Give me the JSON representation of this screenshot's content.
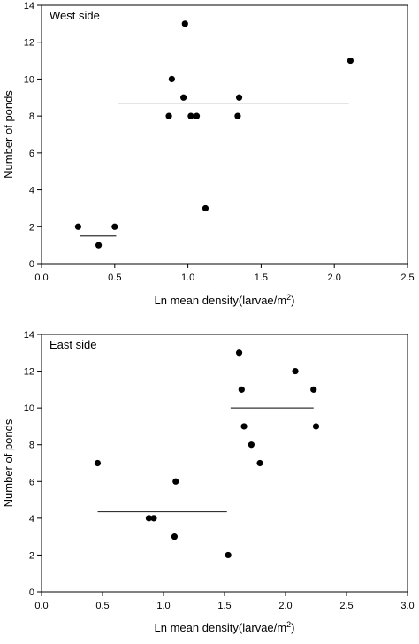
{
  "chart_data": [
    {
      "type": "scatter",
      "panel_label": "West side",
      "xlabel": "Ln mean density(larvae/m",
      "xlabel_sup": "2",
      "xlabel_close": ")",
      "ylabel": "Number of ponds",
      "xlim": [
        0.0,
        2.5
      ],
      "ylim": [
        0,
        14
      ],
      "xticks": [
        "0.0",
        "0.5",
        "1.0",
        "1.5",
        "2.0",
        "2.5"
      ],
      "yticks": [
        "0",
        "2",
        "4",
        "6",
        "8",
        "10",
        "12",
        "14"
      ],
      "grid": false,
      "points": [
        {
          "x": 0.25,
          "y": 2
        },
        {
          "x": 0.39,
          "y": 1
        },
        {
          "x": 0.5,
          "y": 2
        },
        {
          "x": 0.87,
          "y": 8
        },
        {
          "x": 0.89,
          "y": 10
        },
        {
          "x": 0.97,
          "y": 9
        },
        {
          "x": 0.98,
          "y": 13
        },
        {
          "x": 1.02,
          "y": 8
        },
        {
          "x": 1.06,
          "y": 8
        },
        {
          "x": 1.12,
          "y": 3
        },
        {
          "x": 1.34,
          "y": 8
        },
        {
          "x": 1.35,
          "y": 9
        },
        {
          "x": 2.11,
          "y": 11
        }
      ],
      "mean_lines": [
        {
          "x1": 0.26,
          "x2": 0.51,
          "y": 1.5
        },
        {
          "x1": 0.52,
          "x2": 2.1,
          "y": 8.7
        }
      ]
    },
    {
      "type": "scatter",
      "panel_label": "East side",
      "xlabel": "Ln mean density(larvae/m",
      "xlabel_sup": "2",
      "xlabel_close": ")",
      "ylabel": "Number of ponds",
      "xlim": [
        0.0,
        3.0
      ],
      "ylim": [
        0,
        14
      ],
      "xticks": [
        "0.0",
        "0.5",
        "1.0",
        "1.5",
        "2.0",
        "2.5",
        "3.0"
      ],
      "yticks": [
        "0",
        "2",
        "4",
        "6",
        "8",
        "10",
        "12",
        "14"
      ],
      "grid": false,
      "points": [
        {
          "x": 0.46,
          "y": 7
        },
        {
          "x": 0.88,
          "y": 4
        },
        {
          "x": 0.92,
          "y": 4
        },
        {
          "x": 1.09,
          "y": 3
        },
        {
          "x": 1.1,
          "y": 6
        },
        {
          "x": 1.53,
          "y": 2
        },
        {
          "x": 1.62,
          "y": 13
        },
        {
          "x": 1.64,
          "y": 11
        },
        {
          "x": 1.66,
          "y": 9
        },
        {
          "x": 1.72,
          "y": 8
        },
        {
          "x": 1.79,
          "y": 7
        },
        {
          "x": 2.08,
          "y": 12
        },
        {
          "x": 2.23,
          "y": 11
        },
        {
          "x": 2.25,
          "y": 9
        }
      ],
      "mean_lines": [
        {
          "x1": 0.46,
          "x2": 1.52,
          "y": 4.35
        },
        {
          "x1": 1.55,
          "x2": 2.23,
          "y": 10.0
        }
      ]
    }
  ]
}
